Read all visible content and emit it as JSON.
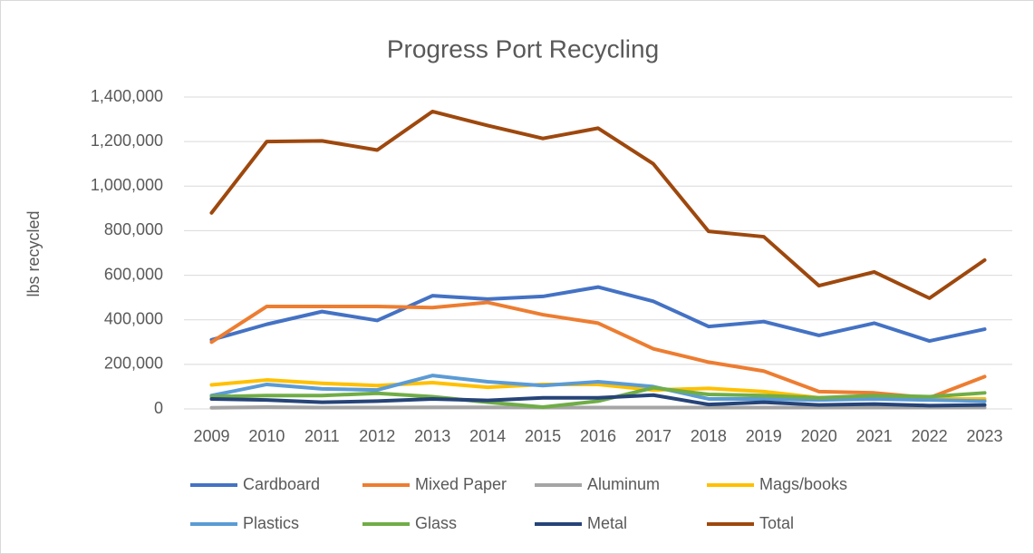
{
  "chart_data": {
    "type": "line",
    "title": "Progress Port Recycling",
    "y_label": "lbs recycled",
    "categories": [
      "2009",
      "2010",
      "2011",
      "2012",
      "2013",
      "2014",
      "2015",
      "2016",
      "2017",
      "2018",
      "2019",
      "2020",
      "2021",
      "2022",
      "2023"
    ],
    "series": [
      {
        "name": "Cardboard",
        "color": "#4472c4",
        "values": [
          310000,
          380000,
          437000,
          397000,
          508000,
          493000,
          505000,
          547000,
          483000,
          370000,
          392000,
          330000,
          385000,
          305000,
          358000
        ]
      },
      {
        "name": "Mixed Paper",
        "color": "#ed7d31",
        "values": [
          300000,
          460000,
          460000,
          460000,
          455000,
          478000,
          423000,
          385000,
          270000,
          210000,
          170000,
          78000,
          72000,
          50000,
          145000
        ]
      },
      {
        "name": "Aluminum",
        "color": "#a5a5a5",
        "values": [
          5000,
          8000,
          6000,
          6000,
          7000,
          7000,
          6000,
          6000,
          6000,
          6000,
          6000,
          6000,
          6000,
          6000,
          6000
        ]
      },
      {
        "name": "Mags/books",
        "color": "#ffc000",
        "values": [
          108000,
          130000,
          115000,
          105000,
          118000,
          97000,
          110000,
          110000,
          85000,
          92000,
          78000,
          50000,
          55000,
          45000,
          45000
        ]
      },
      {
        "name": "Plastics",
        "color": "#5b9bd5",
        "values": [
          60000,
          110000,
          90000,
          85000,
          150000,
          122000,
          105000,
          122000,
          100000,
          45000,
          45000,
          40000,
          45000,
          40000,
          35000
        ]
      },
      {
        "name": "Glass",
        "color": "#70ad47",
        "values": [
          55000,
          60000,
          60000,
          70000,
          55000,
          30000,
          8000,
          35000,
          95000,
          65000,
          60000,
          50000,
          60000,
          55000,
          72000
        ]
      },
      {
        "name": "Metal",
        "color": "#264478",
        "values": [
          45000,
          40000,
          30000,
          35000,
          45000,
          38000,
          50000,
          50000,
          62000,
          20000,
          30000,
          18000,
          22000,
          15000,
          18000
        ]
      },
      {
        "name": "Total",
        "color": "#9e480e",
        "values": [
          880000,
          1200000,
          1203000,
          1162000,
          1335000,
          1272000,
          1214000,
          1260000,
          1100000,
          797000,
          773000,
          553000,
          615000,
          497000,
          668000
        ]
      }
    ],
    "ylim": [
      0,
      1400000
    ],
    "yticks": [
      0,
      {
        "value": 200000,
        "label": "200,000"
      },
      {
        "value": 400000,
        "label": "400,000"
      },
      {
        "value": 600000,
        "label": "600,000"
      },
      {
        "value": 800000,
        "label": "800,000"
      },
      {
        "value": 1000000,
        "label": "1,000,000"
      },
      {
        "value": 1200000,
        "label": "1,200,000"
      },
      {
        "value": 1400000,
        "label": "1,400,000"
      }
    ],
    "grid": true
  }
}
